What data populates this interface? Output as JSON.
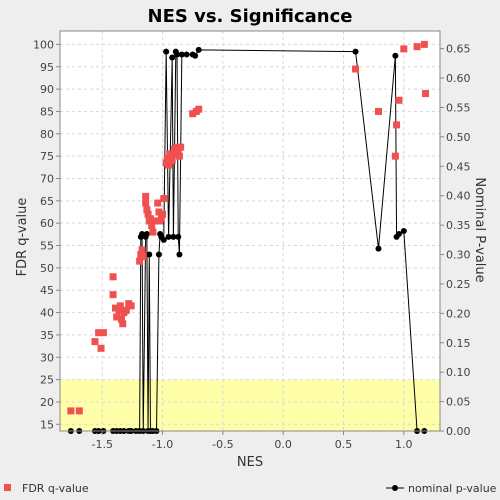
{
  "chart_data": {
    "type": "scatter",
    "title": "NES vs. Significance",
    "xlabel": "NES",
    "ylabel_left": "FDR q-value",
    "ylabel_right": "Nominal P-value",
    "xlim": [
      -1.85,
      1.3
    ],
    "ylim_left": [
      13.5,
      103
    ],
    "ylim_right": [
      0,
      0.68
    ],
    "x_ticks": [
      -1.5,
      -1.0,
      -0.5,
      0.0,
      0.5,
      1.0
    ],
    "x_tick_labels": [
      "-1.5",
      "-1.0",
      "-0.5",
      "0.0",
      "0.5",
      "1.0"
    ],
    "y_left_ticks": [
      15,
      20,
      25,
      30,
      35,
      40,
      45,
      50,
      55,
      60,
      65,
      70,
      75,
      80,
      85,
      90,
      95,
      100
    ],
    "y_left_tick_labels": [
      "15",
      "20",
      "25",
      "30",
      "35",
      "40",
      "45",
      "50",
      "55",
      "60",
      "65",
      "70",
      "75",
      "80",
      "85",
      "90",
      "95",
      "100"
    ],
    "y_right_ticks": [
      0.0,
      0.05,
      0.1,
      0.15,
      0.2,
      0.25,
      0.3,
      0.35,
      0.4,
      0.45,
      0.5,
      0.55,
      0.6,
      0.65
    ],
    "y_right_tick_labels": [
      "0.00",
      "0.05",
      "0.10",
      "0.15",
      "0.20",
      "0.25",
      "0.30",
      "0.35",
      "0.40",
      "0.45",
      "0.50",
      "0.55",
      "0.60",
      "0.65"
    ],
    "highlight_band": {
      "from": 13.5,
      "to": 25,
      "color": "#ffffaa"
    },
    "grid": true,
    "legend_position": "bottom",
    "series": [
      {
        "name": "FDR q-value",
        "axis": "left",
        "marker": "square",
        "color": "#f05050",
        "points": [
          [
            -1.76,
            18.0
          ],
          [
            -1.69,
            18.0
          ],
          [
            -1.56,
            33.5
          ],
          [
            -1.53,
            35.5
          ],
          [
            -1.51,
            32.0
          ],
          [
            -1.49,
            35.5
          ],
          [
            -1.41,
            48.0
          ],
          [
            -1.41,
            44.0
          ],
          [
            -1.39,
            41.0
          ],
          [
            -1.38,
            39.0
          ],
          [
            -1.36,
            40.5
          ],
          [
            -1.35,
            41.5
          ],
          [
            -1.34,
            38.5
          ],
          [
            -1.33,
            37.5
          ],
          [
            -1.32,
            40.0
          ],
          [
            -1.3,
            40.5
          ],
          [
            -1.28,
            42.0
          ],
          [
            -1.26,
            41.5
          ],
          [
            -1.19,
            51.5
          ],
          [
            -1.18,
            53.0
          ],
          [
            -1.17,
            54.0
          ],
          [
            -1.16,
            52.5
          ],
          [
            -1.14,
            66.0
          ],
          [
            -1.14,
            64.5
          ],
          [
            -1.13,
            63.0
          ],
          [
            -1.12,
            62.0
          ],
          [
            -1.11,
            60.5
          ],
          [
            -1.1,
            61.0
          ],
          [
            -1.09,
            59.5
          ],
          [
            -1.08,
            58.0
          ],
          [
            -1.06,
            60.5
          ],
          [
            -1.04,
            64.5
          ],
          [
            -1.03,
            62.5
          ],
          [
            -1.02,
            60.5
          ],
          [
            -1.01,
            61.0
          ],
          [
            -1.0,
            62.0
          ],
          [
            -0.99,
            65.5
          ],
          [
            -0.97,
            73.5
          ],
          [
            -0.96,
            74.5
          ],
          [
            -0.95,
            73.0
          ],
          [
            -0.94,
            75.5
          ],
          [
            -0.92,
            74.0
          ],
          [
            -0.9,
            76.5
          ],
          [
            -0.89,
            75.5
          ],
          [
            -0.88,
            77.0
          ],
          [
            -0.87,
            76.0
          ],
          [
            -0.86,
            75.0
          ],
          [
            -0.85,
            77.0
          ],
          [
            -0.75,
            84.5
          ],
          [
            -0.72,
            85.0
          ],
          [
            -0.7,
            85.5
          ],
          [
            0.6,
            94.5
          ],
          [
            0.79,
            85.0
          ],
          [
            0.93,
            75.0
          ],
          [
            0.94,
            82.0
          ],
          [
            0.96,
            87.5
          ],
          [
            1.0,
            99.0
          ],
          [
            1.11,
            99.5
          ],
          [
            1.17,
            100.0
          ],
          [
            1.18,
            89.0
          ]
        ]
      },
      {
        "name": "nominal p-value",
        "axis": "right",
        "marker": "circle-line",
        "color": "#000000",
        "points": [
          [
            -1.76,
            0.0
          ],
          [
            -1.69,
            0.0
          ],
          [
            -1.56,
            0.0
          ],
          [
            -1.53,
            0.0
          ],
          [
            -1.49,
            0.0
          ],
          [
            -1.41,
            0.0
          ],
          [
            -1.38,
            0.0
          ],
          [
            -1.35,
            0.0
          ],
          [
            -1.32,
            0.0
          ],
          [
            -1.28,
            0.0
          ],
          [
            -1.26,
            0.0
          ],
          [
            -1.22,
            0.0
          ],
          [
            -1.19,
            0.0
          ],
          [
            -1.18,
            0.33
          ],
          [
            -1.17,
            0.335
          ],
          [
            -1.16,
            0.0
          ],
          [
            -1.14,
            0.33
          ],
          [
            -1.13,
            0.335
          ],
          [
            -1.12,
            0.0
          ],
          [
            -1.11,
            0.3
          ],
          [
            -1.1,
            0.0
          ],
          [
            -1.08,
            0.0
          ],
          [
            -1.05,
            0.0
          ],
          [
            -1.03,
            0.3
          ],
          [
            -1.02,
            0.335
          ],
          [
            -1.01,
            0.33
          ],
          [
            -0.99,
            0.325
          ],
          [
            -0.97,
            0.645
          ],
          [
            -0.95,
            0.33
          ],
          [
            -0.92,
            0.635
          ],
          [
            -0.91,
            0.33
          ],
          [
            -0.89,
            0.645
          ],
          [
            -0.88,
            0.64
          ],
          [
            -0.87,
            0.33
          ],
          [
            -0.86,
            0.3
          ],
          [
            -0.84,
            0.64
          ],
          [
            -0.8,
            0.64
          ],
          [
            -0.75,
            0.64
          ],
          [
            -0.73,
            0.638
          ],
          [
            -0.7,
            0.648
          ],
          [
            0.6,
            0.645
          ],
          [
            0.79,
            0.31
          ],
          [
            0.93,
            0.638
          ],
          [
            0.94,
            0.33
          ],
          [
            0.96,
            0.335
          ],
          [
            1.0,
            0.34
          ],
          [
            1.11,
            0.0
          ],
          [
            1.17,
            0.0
          ]
        ]
      }
    ]
  }
}
